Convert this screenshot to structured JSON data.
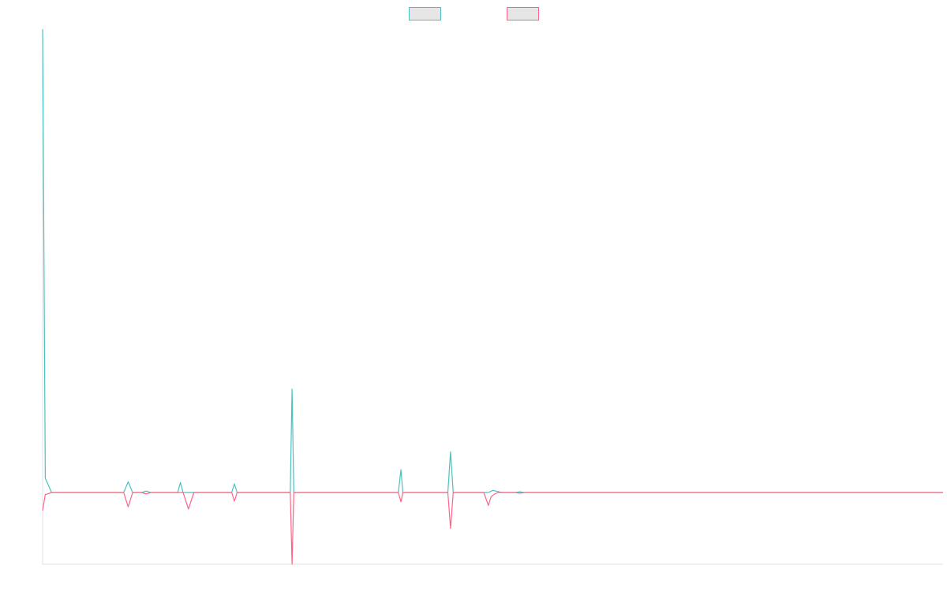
{
  "chart_data": {
    "type": "line",
    "title": "",
    "xlabel": "",
    "ylabel": "",
    "grid": false,
    "legend_position": "top-center",
    "x_count": 100,
    "ylim": [
      -1,
      6.5
    ],
    "series": [
      {
        "name": "",
        "color": "#4bc0c0",
        "fill": "#e6e6e6",
        "points": [
          [
            0,
            6.5
          ],
          [
            0.3,
            0.2
          ],
          [
            1,
            0
          ],
          [
            9,
            0
          ],
          [
            9.5,
            0.15
          ],
          [
            10,
            0
          ],
          [
            11,
            0
          ],
          [
            11.5,
            0.02
          ],
          [
            12,
            0
          ],
          [
            15,
            0
          ],
          [
            15.3,
            0.14
          ],
          [
            15.6,
            0
          ],
          [
            16.8,
            0
          ],
          [
            17,
            0
          ],
          [
            21,
            0
          ],
          [
            21.3,
            0.12
          ],
          [
            21.6,
            0
          ],
          [
            27.5,
            0
          ],
          [
            27.7,
            1.45
          ],
          [
            27.9,
            0
          ],
          [
            39.5,
            0
          ],
          [
            39.8,
            0.32
          ],
          [
            40,
            0
          ],
          [
            45,
            0
          ],
          [
            45.3,
            0.57
          ],
          [
            45.6,
            0
          ],
          [
            49.5,
            0
          ],
          [
            50,
            0.03
          ],
          [
            51,
            0
          ],
          [
            52.5,
            0
          ],
          [
            53,
            0.01
          ],
          [
            53.5,
            0
          ],
          [
            100,
            0
          ]
        ]
      },
      {
        "name": "",
        "color": "#ff6384",
        "fill": "#e6e6e6",
        "points": [
          [
            0,
            -0.25
          ],
          [
            0.3,
            -0.03
          ],
          [
            1,
            0
          ],
          [
            9,
            0
          ],
          [
            9.5,
            -0.2
          ],
          [
            10,
            0
          ],
          [
            11,
            0
          ],
          [
            11.5,
            -0.02
          ],
          [
            12,
            0
          ],
          [
            15,
            0
          ],
          [
            15.6,
            0
          ],
          [
            16.2,
            -0.23
          ],
          [
            16.8,
            0
          ],
          [
            21,
            0
          ],
          [
            21.3,
            -0.12
          ],
          [
            21.6,
            0
          ],
          [
            27.5,
            0
          ],
          [
            27.7,
            -1.0
          ],
          [
            27.9,
            0
          ],
          [
            39.5,
            0
          ],
          [
            39.8,
            -0.13
          ],
          [
            40,
            0
          ],
          [
            45,
            0
          ],
          [
            45.3,
            -0.5
          ],
          [
            45.6,
            0
          ],
          [
            49,
            0
          ],
          [
            49.5,
            -0.18
          ],
          [
            49.8,
            -0.06
          ],
          [
            50.2,
            -0.02
          ],
          [
            50.6,
            0
          ],
          [
            52.5,
            0
          ],
          [
            53,
            -0.01
          ],
          [
            53.5,
            0
          ],
          [
            100,
            0
          ]
        ]
      }
    ]
  }
}
